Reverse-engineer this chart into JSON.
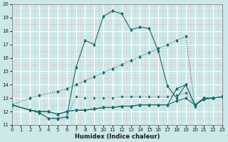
{
  "xlabel": "Humidex (Indice chaleur)",
  "bg_color": "#cce8e8",
  "grid_color": "#ffffff",
  "grid_minor_color": "#e8d8d8",
  "line_color": "#1a6b6b",
  "xlim": [
    0,
    23
  ],
  "ylim": [
    11,
    20
  ],
  "xticks": [
    0,
    1,
    2,
    3,
    4,
    5,
    6,
    7,
    8,
    9,
    10,
    11,
    12,
    13,
    14,
    15,
    16,
    17,
    18,
    19,
    20,
    21,
    22,
    23
  ],
  "yticks": [
    11,
    12,
    13,
    14,
    15,
    16,
    17,
    18,
    19,
    20
  ],
  "line_dotted_x": [
    0,
    2,
    3,
    4,
    5,
    6,
    7,
    8,
    9,
    10,
    11,
    12,
    13,
    14,
    15,
    16,
    17,
    18,
    19,
    20,
    21,
    22,
    23
  ],
  "line_dotted_y": [
    12.5,
    12.1,
    11.9,
    11.5,
    11.4,
    11.6,
    13.1,
    13.0,
    13.0,
    13.0,
    13.0,
    13.1,
    13.1,
    13.1,
    13.1,
    13.1,
    13.1,
    13.2,
    13.4,
    12.5,
    13.0,
    13.0,
    13.1
  ],
  "line_main_x": [
    0,
    2,
    3,
    4,
    5,
    6,
    7,
    8,
    9,
    10,
    11,
    12,
    13,
    14,
    15,
    16,
    17,
    18,
    19,
    20,
    21,
    22,
    23
  ],
  "line_main_y": [
    12.5,
    12.1,
    11.9,
    11.5,
    11.5,
    11.6,
    15.3,
    17.3,
    17.0,
    19.1,
    19.5,
    19.3,
    18.1,
    18.3,
    18.2,
    16.5,
    13.9,
    13.0,
    14.0,
    12.5,
    13.0,
    13.0,
    13.1
  ],
  "line_flat1_x": [
    0,
    2,
    3,
    4,
    5,
    6,
    7,
    8,
    9,
    10,
    11,
    12,
    13,
    14,
    15,
    16,
    17,
    18,
    19,
    20,
    21,
    22,
    23
  ],
  "line_flat1_y": [
    12.5,
    12.1,
    12.0,
    12.0,
    11.8,
    12.0,
    12.1,
    12.1,
    12.2,
    12.3,
    12.3,
    12.4,
    12.4,
    12.5,
    12.5,
    12.5,
    12.5,
    13.7,
    14.0,
    12.5,
    13.0,
    13.0,
    13.1
  ],
  "line_flat2_x": [
    0,
    2,
    3,
    4,
    5,
    6,
    7,
    8,
    9,
    10,
    11,
    12,
    13,
    14,
    15,
    16,
    17,
    18,
    19,
    20,
    21,
    22,
    23
  ],
  "line_flat2_y": [
    12.5,
    12.1,
    12.0,
    12.0,
    11.8,
    12.0,
    12.1,
    12.1,
    12.2,
    12.3,
    12.3,
    12.4,
    12.4,
    12.5,
    12.5,
    12.5,
    12.5,
    12.8,
    13.0,
    12.5,
    12.9,
    13.0,
    13.1
  ],
  "line_diag_x": [
    0,
    2,
    3,
    5,
    6,
    7,
    8,
    9,
    10,
    11,
    12,
    13,
    14,
    15,
    16,
    17,
    18,
    19,
    20,
    21,
    22,
    23
  ],
  "line_diag_y": [
    12.5,
    13.0,
    13.2,
    13.5,
    13.7,
    14.0,
    14.3,
    14.6,
    14.9,
    15.2,
    15.5,
    15.8,
    16.1,
    16.4,
    16.7,
    17.0,
    17.3,
    17.6,
    12.4,
    13.0,
    13.0,
    13.1
  ]
}
